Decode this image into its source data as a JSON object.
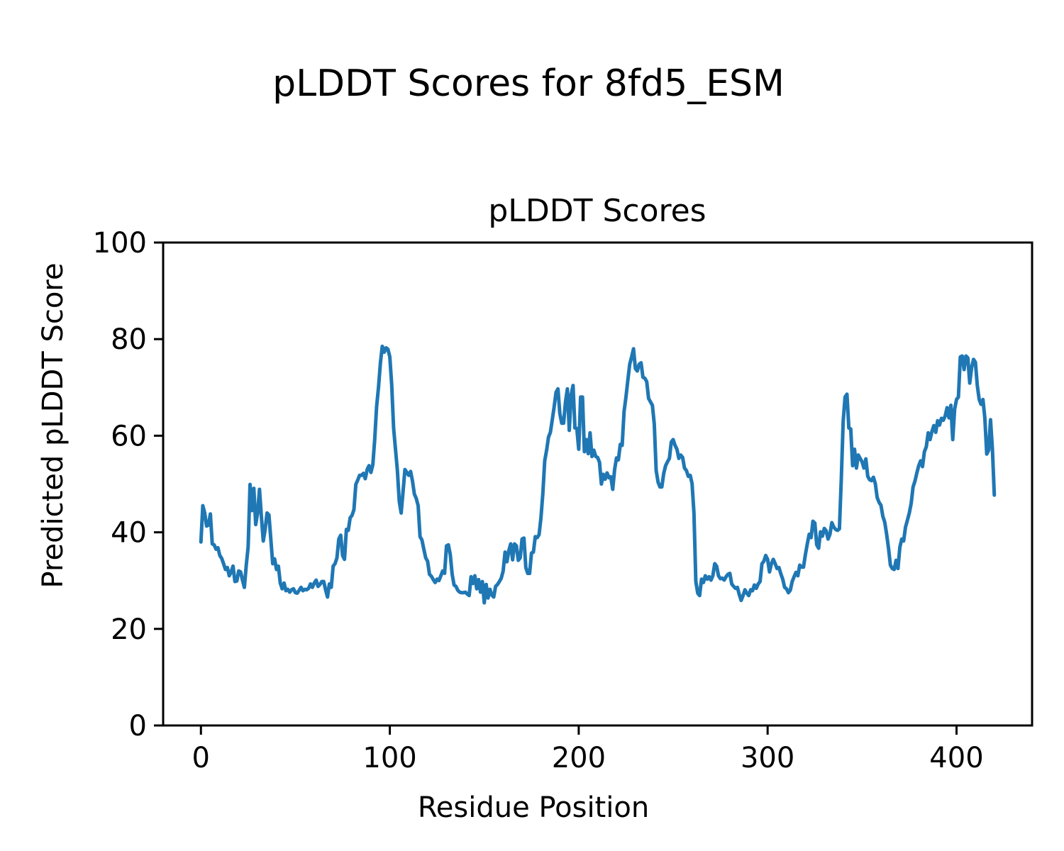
{
  "figure": {
    "suptitle": "pLDDT Scores for 8fd5_ESM"
  },
  "chart_data": {
    "type": "line",
    "title": "pLDDT Scores",
    "xlabel": "Residue Position",
    "ylabel": "Predicted pLDDT Score",
    "xlim": [
      -20,
      440
    ],
    "ylim": [
      0,
      100
    ],
    "xticks": [
      0,
      100,
      200,
      300,
      400
    ],
    "yticks": [
      0,
      20,
      40,
      60,
      80,
      100
    ],
    "grid": false,
    "legend": "none",
    "line_color": "#1f77b4",
    "line_width": 5,
    "series": [
      {
        "name": "pLDDT",
        "x_start": 0,
        "x_step": 1,
        "y": [
          38.0,
          45.5,
          44.0,
          41.3,
          41.5,
          43.8,
          37.6,
          37.4,
          36.5,
          36.8,
          35.2,
          34.6,
          33.5,
          32.3,
          32.7,
          31.0,
          31.8,
          33.0,
          29.8,
          29.9,
          32.0,
          31.8,
          30.1,
          28.6,
          33.2,
          37.0,
          49.9,
          44.5,
          49.1,
          41.6,
          44.0,
          48.9,
          43.3,
          38.2,
          40.6,
          44.0,
          43.6,
          38.6,
          33.5,
          34.5,
          32.3,
          33.0,
          29.5,
          28.3,
          29.5,
          27.9,
          28.2,
          27.6,
          28.1,
          28.3,
          27.5,
          27.4,
          28.0,
          28.6,
          27.9,
          28.2,
          28.1,
          28.4,
          29.3,
          28.6,
          29.5,
          30.1,
          28.8,
          29.2,
          29.8,
          29.8,
          28.1,
          26.6,
          29.3,
          28.6,
          33.0,
          33.5,
          34.7,
          38.6,
          39.4,
          35.2,
          34.4,
          40.6,
          40.4,
          43.0,
          43.5,
          44.7,
          49.9,
          50.8,
          51.8,
          51.8,
          52.2,
          51.1,
          53.0,
          53.8,
          52.4,
          54.0,
          59.2,
          66.0,
          70.0,
          75.0,
          78.5,
          77.3,
          78.2,
          77.9,
          76.3,
          70.5,
          61.6,
          57.2,
          52.8,
          46.4,
          44.0,
          48.4,
          53.0,
          52.4,
          51.8,
          52.6,
          50.6,
          47.9,
          47.0,
          45.5,
          39.1,
          38.4,
          36.5,
          34.7,
          34.0,
          31.3,
          30.9,
          30.2,
          29.6,
          30.3,
          30.0,
          31.0,
          32.0,
          31.5,
          37.2,
          37.4,
          35.4,
          31.3,
          29.1,
          28.8,
          28.0,
          27.6,
          27.5,
          27.5,
          27.6,
          27.2,
          26.9,
          30.8,
          29.4,
          31.0,
          28.3,
          30.2,
          27.6,
          29.8,
          25.4,
          29.2,
          26.4,
          28.2,
          27.0,
          26.6,
          28.8,
          29.2,
          29.8,
          30.5,
          32.0,
          35.9,
          33.9,
          36.2,
          37.6,
          34.3,
          37.6,
          37.2,
          34.2,
          34.7,
          38.6,
          38.8,
          32.7,
          31.5,
          31.5,
          35.7,
          35.9,
          39.1,
          38.9,
          39.5,
          43.0,
          48.0,
          54.8,
          57.0,
          59.7,
          60.7,
          63.3,
          66.0,
          69.0,
          69.7,
          64.6,
          62.6,
          62.6,
          67.0,
          69.7,
          61.1,
          68.5,
          70.4,
          61.6,
          61.5,
          57.2,
          68.0,
          68.0,
          56.7,
          59.2,
          56.3,
          60.6,
          55.7,
          57.0,
          55.7,
          55.5,
          54.5,
          50.0,
          52.0,
          51.0,
          52.3,
          51.3,
          51.5,
          48.9,
          53.0,
          55.4,
          55.0,
          58.2,
          58.0,
          65.0,
          68.0,
          71.5,
          74.8,
          76.3,
          78.0,
          73.9,
          73.4,
          74.8,
          75.1,
          72.1,
          71.9,
          71.2,
          67.7,
          67.0,
          66.3,
          62.4,
          52.8,
          50.4,
          49.4,
          49.4,
          52.2,
          53.8,
          54.6,
          55.3,
          58.7,
          59.2,
          58.0,
          57.2,
          55.3,
          56.0,
          55.5,
          53.3,
          52.8,
          51.6,
          51.8,
          50.1,
          44.0,
          29.8,
          27.4,
          26.9,
          30.3,
          29.6,
          31.0,
          30.3,
          30.8,
          30.1,
          31.0,
          33.5,
          33.0,
          31.0,
          30.4,
          30.5,
          30.1,
          30.8,
          31.3,
          31.5,
          29.3,
          28.8,
          28.4,
          28.6,
          27.1,
          25.9,
          26.9,
          28.1,
          27.4,
          26.9,
          28.1,
          27.9,
          29.1,
          28.4,
          29.3,
          29.8,
          33.5,
          34.0,
          35.2,
          34.4,
          31.8,
          33.5,
          34.4,
          33.5,
          32.5,
          32.7,
          31.4,
          30.3,
          28.6,
          28.3,
          27.5,
          28.0,
          29.8,
          30.8,
          31.7,
          31.0,
          33.2,
          32.8,
          32.8,
          35.4,
          37.6,
          39.6,
          38.9,
          42.3,
          41.9,
          37.4,
          36.7,
          40.1,
          39.2,
          40.8,
          40.3,
          38.6,
          39.6,
          42.0,
          41.1,
          40.6,
          40.4,
          40.7,
          51.0,
          63.0,
          68.0,
          68.6,
          61.6,
          61.4,
          53.8,
          57.2,
          53.3,
          56.0,
          55.3,
          54.6,
          53.3,
          55.2,
          51.6,
          50.9,
          50.7,
          51.4,
          50.1,
          47.2,
          46.2,
          45.6,
          43.3,
          42.1,
          39.6,
          36.7,
          33.2,
          32.5,
          32.3,
          34.2,
          32.5,
          36.9,
          38.6,
          38.2,
          41.1,
          42.5,
          44.0,
          46.0,
          49.4,
          50.6,
          52.3,
          53.8,
          54.8,
          53.6,
          56.7,
          57.7,
          60.6,
          59.2,
          60.9,
          62.1,
          60.7,
          63.1,
          62.2,
          63.6,
          63.2,
          64.1,
          65.8,
          63.7,
          66.3,
          59.2,
          65.5,
          67.5,
          68.0,
          76.3,
          76.5,
          73.7,
          76.5,
          76.1,
          70.9,
          74.1,
          75.8,
          75.2,
          70.4,
          67.5,
          66.5,
          67.5,
          63.6,
          56.2,
          57.0,
          63.3,
          57.2,
          47.7
        ]
      }
    ]
  }
}
